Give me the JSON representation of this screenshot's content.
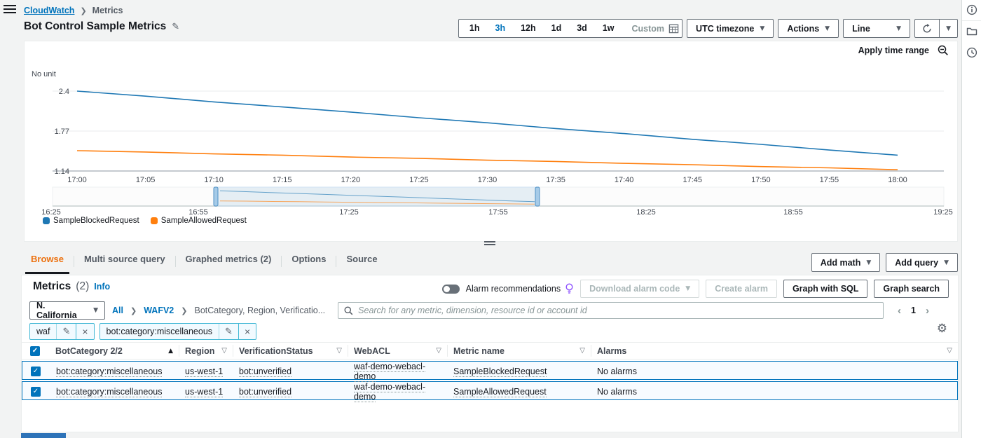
{
  "breadcrumb": {
    "root": "CloudWatch",
    "current": "Metrics"
  },
  "page_title": "Bot Control Sample Metrics",
  "toolbar": {
    "ranges": [
      "1h",
      "3h",
      "12h",
      "1d",
      "3d",
      "1w"
    ],
    "active_range": "3h",
    "custom_label": "Custom",
    "timezone_label": "UTC timezone",
    "actions_label": "Actions",
    "chart_type_label": "Line",
    "apply_time_range_label": "Apply time range"
  },
  "chart_data": {
    "type": "line",
    "title": "Bot Control Sample Metrics",
    "ylabel": "No unit",
    "y_ticks": [
      "2.4",
      "1.77",
      "1.14"
    ],
    "y_tick_values": [
      2.4,
      1.77,
      1.14
    ],
    "ylim": [
      1.14,
      2.4
    ],
    "x_ticks": [
      "17:00",
      "17:05",
      "17:10",
      "17:15",
      "17:20",
      "17:25",
      "17:30",
      "17:35",
      "17:40",
      "17:45",
      "17:50",
      "17:55",
      "18:00"
    ],
    "grid": true,
    "legend_position": "bottom",
    "series": [
      {
        "name": "SampleBlockedRequest",
        "color": "#1f78b4",
        "values": [
          2.4,
          2.32,
          2.23,
          2.15,
          2.07,
          1.98,
          1.9,
          1.81,
          1.73,
          1.64,
          1.56,
          1.47,
          1.39
        ]
      },
      {
        "name": "SampleAllowedRequest",
        "color": "#ff7f0e",
        "values": [
          1.46,
          1.44,
          1.41,
          1.39,
          1.36,
          1.34,
          1.31,
          1.29,
          1.26,
          1.24,
          1.21,
          1.19,
          1.16
        ]
      }
    ],
    "brush_ticks": [
      "16:25",
      "16:55",
      "17:25",
      "17:55",
      "18:25",
      "18:55",
      "19:25"
    ]
  },
  "tabs": {
    "items": [
      "Browse",
      "Multi source query",
      "Graphed metrics (2)",
      "Options",
      "Source"
    ],
    "active": "Browse"
  },
  "query_buttons": {
    "add_math": "Add math",
    "add_query": "Add query"
  },
  "metrics_panel": {
    "title": "Metrics",
    "count": "(2)",
    "info_label": "Info",
    "alarm_recommendations_label": "Alarm recommendations",
    "download_alarm_code_label": "Download alarm code",
    "create_alarm_label": "Create alarm",
    "graph_with_sql_label": "Graph with SQL",
    "graph_search_label": "Graph search"
  },
  "browse": {
    "region": "N. California",
    "path_all": "All",
    "path_namespace": "WAFV2",
    "path_dimensions": "BotCategory, Region, Verificatio...",
    "search_placeholder": "Search for any metric, dimension, resource id or account id",
    "page": "1",
    "filters": [
      "waf",
      "bot:category:miscellaneous"
    ]
  },
  "table": {
    "headers": [
      "BotCategory 2/2",
      "Region",
      "VerificationStatus",
      "WebACL",
      "Metric name",
      "Alarms"
    ],
    "rows": [
      {
        "cells": [
          "bot:category:miscellaneous",
          "us-west-1",
          "bot:unverified",
          "waf-demo-webacl-demo",
          "SampleBlockedRequest",
          "No alarms"
        ]
      },
      {
        "cells": [
          "bot:category:miscellaneous",
          "us-west-1",
          "bot:unverified",
          "waf-demo-webacl-demo",
          "SampleAllowedRequest",
          "No alarms"
        ]
      }
    ]
  },
  "colors": {
    "link": "#0073bb",
    "active_tab": "#ec7211",
    "selected_row_border": "#0073bb",
    "series_blue": "#1f78b4",
    "series_orange": "#ff7f0e",
    "lightbulb": "#8c4fff"
  }
}
